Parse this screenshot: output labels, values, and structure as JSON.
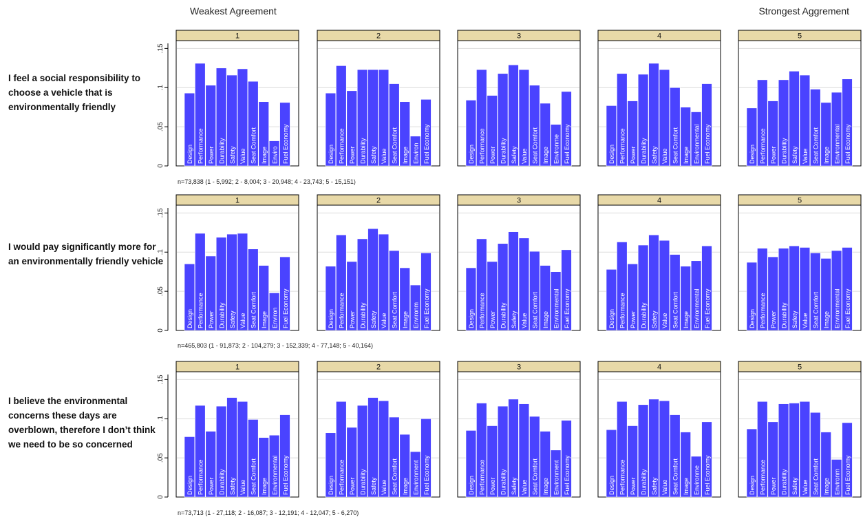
{
  "header": {
    "left_label": "Weakest Agreement",
    "right_label": "Strongest Aggrement"
  },
  "colors": {
    "bar": "#4a43ff",
    "strip": "#e8d9a8",
    "frame": "#000000",
    "grid": "#dcdcdc"
  },
  "chart_data": {
    "type": "bar",
    "categories": [
      "Design",
      "Performance",
      "Power",
      "Durability",
      "Safety",
      "Value",
      "Seat Comfort",
      "Image",
      "Environmental",
      "Fuel Economy"
    ],
    "yticks": [
      0,
      0.05,
      0.1,
      0.15
    ],
    "ytick_labels": [
      "0",
      ".05",
      ".1",
      ".15"
    ],
    "ylim": [
      0,
      0.16
    ],
    "panel_labels": [
      "1",
      "2",
      "3",
      "4",
      "5"
    ],
    "rows": [
      {
        "statement": "I feel a social responsibility to choose a vehicle that is environmentally friendly",
        "n_label": "n=73,838 (1 - 5,992; 2 - 8,004; 3 - 20,948; 4 - 23,743; 5 - 15,151)",
        "panels": [
          {
            "panel": "1",
            "values": [
              0.093,
              0.131,
              0.103,
              0.125,
              0.116,
              0.124,
              0.108,
              0.082,
              0.032,
              0.081
            ],
            "labels": [
              "Design",
              "Performance",
              "Power",
              "Durability",
              "Safety",
              "Value",
              "Seat Comfort",
              "Image",
              "Enviro",
              "Fuel Economy"
            ]
          },
          {
            "panel": "2",
            "values": [
              0.093,
              0.128,
              0.096,
              0.123,
              0.123,
              0.123,
              0.105,
              0.082,
              0.038,
              0.085
            ],
            "labels": [
              "Design",
              "Performance",
              "Power",
              "Durability",
              "Safety",
              "Value",
              "Seat Comfort",
              "Image",
              "Environ",
              "Fuel Economy"
            ]
          },
          {
            "panel": "3",
            "values": [
              0.084,
              0.123,
              0.09,
              0.118,
              0.129,
              0.123,
              0.103,
              0.08,
              0.053,
              0.095
            ],
            "labels": [
              "Design",
              "Performance",
              "Power",
              "Durability",
              "Safety",
              "Value",
              "Seat Comfort",
              "Image",
              "Environme",
              "Fuel Economy"
            ]
          },
          {
            "panel": "4",
            "values": [
              0.077,
              0.118,
              0.083,
              0.117,
              0.131,
              0.123,
              0.1,
              0.075,
              0.069,
              0.105
            ],
            "labels": [
              "Design",
              "Performance",
              "Power",
              "Durability",
              "Safety",
              "Value",
              "Seat Comfort",
              "Image",
              "Environmental",
              "Fuel Economy"
            ]
          },
          {
            "panel": "5",
            "values": [
              0.074,
              0.11,
              0.083,
              0.11,
              0.121,
              0.116,
              0.098,
              0.081,
              0.094,
              0.111
            ],
            "labels": [
              "Design",
              "Performance",
              "Power",
              "Durability",
              "Safety",
              "Value",
              "Seat Comfort",
              "Image",
              "Environmental",
              "Fuel Economy"
            ]
          }
        ]
      },
      {
        "statement": "I would pay significantly more for an environmentally friendly vehicle",
        "n_label": "n=465,803 (1 - 91,873; 2 - 104,279; 3 - 152,339; 4 - 77,148; 5 - 40,164)",
        "panels": [
          {
            "panel": "1",
            "values": [
              0.085,
              0.124,
              0.095,
              0.119,
              0.123,
              0.124,
              0.104,
              0.083,
              0.048,
              0.094
            ],
            "labels": [
              "Design",
              "Performance",
              "Power",
              "Durability",
              "Safety",
              "Value",
              "Seat Comfort",
              "Image",
              "Environ",
              "Fuel Economy"
            ]
          },
          {
            "panel": "2",
            "values": [
              0.082,
              0.122,
              0.088,
              0.117,
              0.13,
              0.123,
              0.102,
              0.08,
              0.058,
              0.099
            ],
            "labels": [
              "Design",
              "Performance",
              "Power",
              "Durability",
              "Safety",
              "Value",
              "Seat Comfort",
              "Image",
              "Environm",
              "Fuel Economy"
            ]
          },
          {
            "panel": "3",
            "values": [
              0.08,
              0.117,
              0.088,
              0.111,
              0.126,
              0.118,
              0.101,
              0.083,
              0.075,
              0.103
            ],
            "labels": [
              "Design",
              "Performance",
              "Power",
              "Durability",
              "Safety",
              "Value",
              "Seat Comfort",
              "Image",
              "Environmental",
              "Fuel Economy"
            ]
          },
          {
            "panel": "4",
            "values": [
              0.078,
              0.113,
              0.085,
              0.109,
              0.122,
              0.115,
              0.097,
              0.082,
              0.089,
              0.108
            ],
            "labels": [
              "Design",
              "Performance",
              "Power",
              "Durability",
              "Safety",
              "Value",
              "Seat Comfort",
              "Image",
              "Environmental",
              "Fuel Economy"
            ]
          },
          {
            "panel": "5",
            "values": [
              0.087,
              0.105,
              0.094,
              0.105,
              0.108,
              0.106,
              0.099,
              0.092,
              0.102,
              0.106
            ],
            "labels": [
              "Design",
              "Performance",
              "Power",
              "Durability",
              "Safety",
              "Value",
              "Seat Comfort",
              "Image",
              "Environmental",
              "Fuel Economy"
            ]
          }
        ]
      },
      {
        "statement": "I believe the environmental concerns these days are overblown, therefore I don’t think we need to be so concerned",
        "n_label": "n=73,713 (1 - 27,118; 2 - 16,087; 3 - 12,191; 4 - 12,047; 5 - 6,270)",
        "panels": [
          {
            "panel": "1",
            "values": [
              0.077,
              0.117,
              0.084,
              0.116,
              0.127,
              0.122,
              0.099,
              0.076,
              0.079,
              0.105
            ],
            "labels": [
              "Design",
              "Performance",
              "Power",
              "Durability",
              "Safety",
              "Value",
              "Seat Comfort",
              "Image",
              "Environmental",
              "Fuel Economy"
            ]
          },
          {
            "panel": "2",
            "values": [
              0.082,
              0.122,
              0.089,
              0.117,
              0.127,
              0.123,
              0.102,
              0.08,
              0.058,
              0.1
            ],
            "labels": [
              "Design",
              "Performance",
              "Power",
              "Durability",
              "Safety",
              "Value",
              "Seat Comfort",
              "Image",
              "Environment",
              "Fuel Economy"
            ]
          },
          {
            "panel": "3",
            "values": [
              0.085,
              0.12,
              0.091,
              0.116,
              0.125,
              0.119,
              0.103,
              0.084,
              0.06,
              0.098
            ],
            "labels": [
              "Design",
              "Performance",
              "Power",
              "Durability",
              "Safety",
              "Value",
              "Seat Comfort",
              "Image",
              "Environment",
              "Fuel Economy"
            ]
          },
          {
            "panel": "4",
            "values": [
              0.086,
              0.122,
              0.091,
              0.118,
              0.125,
              0.123,
              0.105,
              0.083,
              0.052,
              0.096
            ],
            "labels": [
              "Design",
              "Performance",
              "Power",
              "Durability",
              "Safety",
              "Value",
              "Seat Comfort",
              "Image",
              "Environme",
              "Fuel Economy"
            ]
          },
          {
            "panel": "5",
            "values": [
              0.087,
              0.122,
              0.096,
              0.119,
              0.12,
              0.122,
              0.108,
              0.083,
              0.048,
              0.095
            ],
            "labels": [
              "Design",
              "Performance",
              "Power",
              "Durability",
              "Safety",
              "Value",
              "Seat Comfort",
              "Image",
              "Environm",
              "Fuel Economy"
            ]
          }
        ]
      }
    ]
  }
}
